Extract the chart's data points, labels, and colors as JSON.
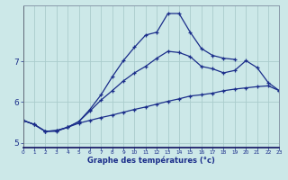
{
  "xlabel": "Graphe des températures (°c)",
  "bg_color": "#cce8e8",
  "grid_color": "#aacccc",
  "line_color": "#1a2d8a",
  "hours": [
    0,
    1,
    2,
    3,
    4,
    5,
    6,
    7,
    8,
    9,
    10,
    11,
    12,
    13,
    14,
    15,
    16,
    17,
    18,
    19,
    20,
    21,
    22,
    23
  ],
  "line_spike_x": [
    0,
    1,
    2,
    3,
    4,
    5,
    6,
    7,
    8,
    9,
    10,
    11,
    12,
    13,
    14,
    15,
    16,
    17,
    18,
    19
  ],
  "line_spike_y": [
    5.55,
    5.45,
    5.28,
    5.28,
    5.38,
    5.52,
    5.82,
    6.18,
    6.62,
    7.02,
    7.35,
    7.65,
    7.72,
    8.18,
    8.18,
    7.72,
    7.32,
    7.15,
    7.08,
    7.05
  ],
  "line_mid": [
    5.55,
    5.45,
    5.28,
    5.3,
    5.38,
    5.52,
    5.78,
    6.05,
    6.28,
    6.52,
    6.72,
    6.88,
    7.08,
    7.25,
    7.22,
    7.12,
    6.88,
    6.82,
    6.72,
    6.78,
    7.02,
    6.85,
    6.48,
    6.28
  ],
  "line_flat": [
    5.55,
    5.45,
    5.28,
    5.3,
    5.38,
    5.48,
    5.55,
    5.62,
    5.68,
    5.75,
    5.82,
    5.88,
    5.95,
    6.02,
    6.08,
    6.15,
    6.18,
    6.22,
    6.28,
    6.32,
    6.35,
    6.38,
    6.4,
    6.28
  ],
  "xlim": [
    0,
    23
  ],
  "ylim": [
    4.88,
    8.38
  ],
  "yticks": [
    5,
    6,
    7
  ],
  "xticks": [
    0,
    1,
    2,
    3,
    4,
    5,
    6,
    7,
    8,
    9,
    10,
    11,
    12,
    13,
    14,
    15,
    16,
    17,
    18,
    19,
    20,
    21,
    22,
    23
  ]
}
